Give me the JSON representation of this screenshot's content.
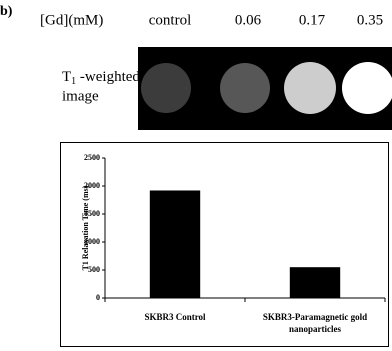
{
  "panel_label": "b)",
  "header": {
    "concentration_label": "[Gd](mM)",
    "columns": [
      "control",
      "0.06",
      "0.17",
      "0.35"
    ]
  },
  "row_label": {
    "main": "T",
    "sub": "1",
    "rest_line1": " -weighted",
    "rest_line2": "image"
  },
  "chart_data": {
    "type": "bar",
    "y_label": "T1 Relaxation Time (ms)",
    "categories": [
      "SKBR3 Control",
      "SKBR3-Paramagnetic gold nanoparticles"
    ],
    "values": [
      1920,
      550
    ],
    "color": "#000000",
    "ylim": [
      0,
      2500
    ],
    "yticks": [
      0,
      500,
      1000,
      1500,
      2000,
      2500
    ],
    "grid": false
  }
}
